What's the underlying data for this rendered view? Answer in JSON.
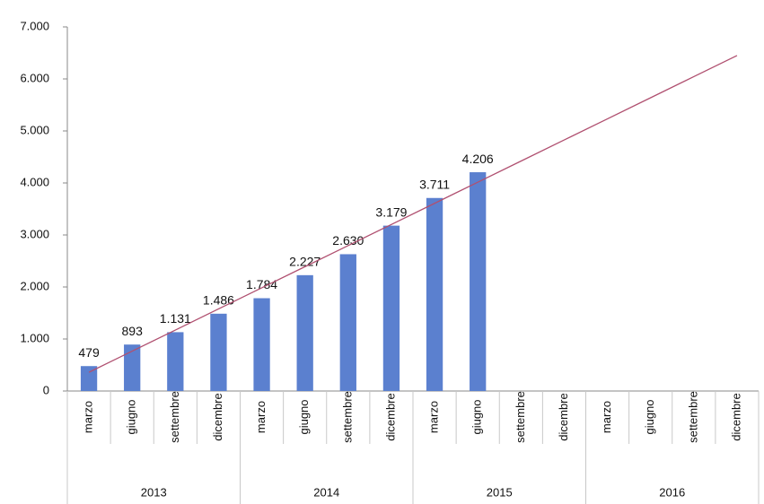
{
  "chart_data": {
    "type": "bar",
    "categories": [
      "marzo",
      "giugno",
      "settembre",
      "dicembre",
      "marzo",
      "giugno",
      "settembre",
      "dicembre",
      "marzo",
      "giugno",
      "settembre",
      "dicembre",
      "marzo",
      "giugno",
      "settembre",
      "dicembre"
    ],
    "groups": [
      {
        "label": "2013",
        "span": 4
      },
      {
        "label": "2014",
        "span": 4
      },
      {
        "label": "2015",
        "span": 4
      },
      {
        "label": "2016",
        "span": 4
      }
    ],
    "values": [
      479,
      893,
      1131,
      1486,
      1784,
      2227,
      2630,
      3179,
      3711,
      4206,
      null,
      null,
      null,
      null,
      null,
      null
    ],
    "value_labels": [
      "479",
      "893",
      "1.131",
      "1.486",
      "1.784",
      "2.227",
      "2.630",
      "3.179",
      "3.711",
      "4.206",
      null,
      null,
      null,
      null,
      null,
      null
    ],
    "color": "#5b80cf",
    "trend": {
      "color": "#b05070",
      "values": [
        360,
        766,
        1172,
        1578,
        1984,
        2390,
        2796,
        3202,
        3608,
        4014,
        4420,
        4826,
        5232,
        5638,
        6044,
        6450
      ]
    },
    "ylim": [
      0,
      7000
    ],
    "yticks": [
      {
        "value": 0,
        "label": "0"
      },
      {
        "value": 1000,
        "label": "1.000"
      },
      {
        "value": 2000,
        "label": "2.000"
      },
      {
        "value": 3000,
        "label": "3.000"
      },
      {
        "value": 4000,
        "label": "4.000"
      },
      {
        "value": 5000,
        "label": "5.000"
      },
      {
        "value": 6000,
        "label": "6.000"
      },
      {
        "value": 7000,
        "label": "7.000"
      }
    ],
    "grid": false
  }
}
